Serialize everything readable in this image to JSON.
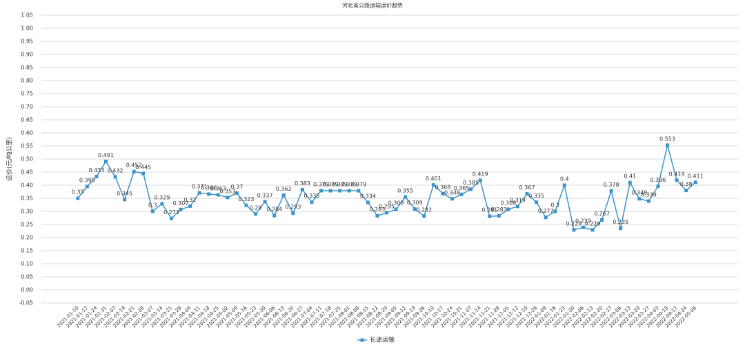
{
  "chart_data": {
    "type": "line",
    "title": "河北省公路运输运价趋势",
    "y_label": "运价(元/吨公里)",
    "categories": [
      "2021-01-10",
      "2021-01-17",
      "2021-01-24",
      "2021-01-31",
      "2021-02-07",
      "2021-02-14",
      "2021-02-21",
      "2021-02-28",
      "2021-03-07",
      "2021-03-14",
      "2021-03-21",
      "2021-03-28",
      "2021-04-04",
      "2021-04-11",
      "2021-04-18",
      "2021-04-25",
      "2021-05-02",
      "2021-05-09",
      "2021-05-16",
      "2021-05-23",
      "2021-05-30",
      "2021-06-06",
      "2021-06-13",
      "2021-06-20",
      "2021-06-27",
      "2021-07-04",
      "2021-07-11",
      "2021-07-18",
      "2021-07-25",
      "2021-08-01",
      "2021-08-08",
      "2021-08-15",
      "2021-08-22",
      "2021-08-29",
      "2021-09-05",
      "2021-09-12",
      "2021-09-19",
      "2021-09-26",
      "2021-10-10",
      "2021-10-17",
      "2021-10-24",
      "2021-10-31",
      "2021-11-07",
      "2021-11-14",
      "2021-11-21",
      "2021-11-28",
      "2021-12-05",
      "2021-12-12",
      "2021-12-19",
      "2021-12-26",
      "2022-01-09",
      "2022-01-16",
      "2022-01-23",
      "2022-01-30",
      "2022-02-06",
      "2022-02-13",
      "2022-02-20",
      "2022-02-27",
      "2022-03-06",
      "2022-03-13",
      "2022-03-20",
      "2022-03-27",
      "2022-04-03",
      "2022-04-10",
      "2022-04-17",
      "2022-04-24",
      "2022-05-08"
    ],
    "series": [
      {
        "name": "长途运输",
        "color": "#3b93c9",
        "values": [
          0.35,
          0.395,
          0.433,
          0.491,
          0.432,
          0.345,
          0.452,
          0.445,
          0.3,
          0.329,
          0.273,
          0.307,
          0.32,
          0.371,
          0.366,
          0.363,
          0.353,
          0.37,
          0.323,
          0.29,
          0.337,
          0.284,
          0.362,
          0.293,
          0.383,
          0.335,
          0.379,
          0.379,
          0.379,
          0.379,
          0.379,
          0.334,
          0.283,
          0.295,
          0.308,
          0.355,
          0.309,
          0.282,
          0.401,
          0.368,
          0.348,
          0.365,
          0.385,
          0.419,
          0.281,
          0.283,
          0.308,
          0.319,
          0.367,
          0.335,
          0.277,
          0.3,
          0.4,
          0.229,
          0.239,
          0.229,
          0.267,
          0.378,
          0.235,
          0.41,
          0.348,
          0.339,
          0.396,
          0.553,
          0.419,
          0.38,
          0.411
        ]
      }
    ],
    "ylim": [
      -0.05,
      1.05
    ],
    "yticks": [
      -0.05,
      {
        "value": 0,
        "label": "0.00"
      },
      0.05,
      {
        "value": 0.1,
        "label": "0.10"
      },
      0.15,
      {
        "value": 0.2,
        "label": "0.20"
      },
      0.25,
      {
        "value": 0.3,
        "label": "0.30"
      },
      0.35,
      {
        "value": 0.4,
        "label": "0.40"
      },
      0.45,
      {
        "value": 0.5,
        "label": "0.50"
      },
      0.55,
      {
        "value": 0.6,
        "label": "0.60"
      },
      0.65,
      {
        "value": 0.7,
        "label": "0.70"
      },
      0.75,
      {
        "value": 0.8,
        "label": "0.80"
      },
      0.85,
      {
        "value": 0.9,
        "label": "0.90"
      },
      0.95,
      {
        "value": 1,
        "label": "1.00"
      },
      1.05
    ],
    "grid": true,
    "legend": "bottom"
  }
}
